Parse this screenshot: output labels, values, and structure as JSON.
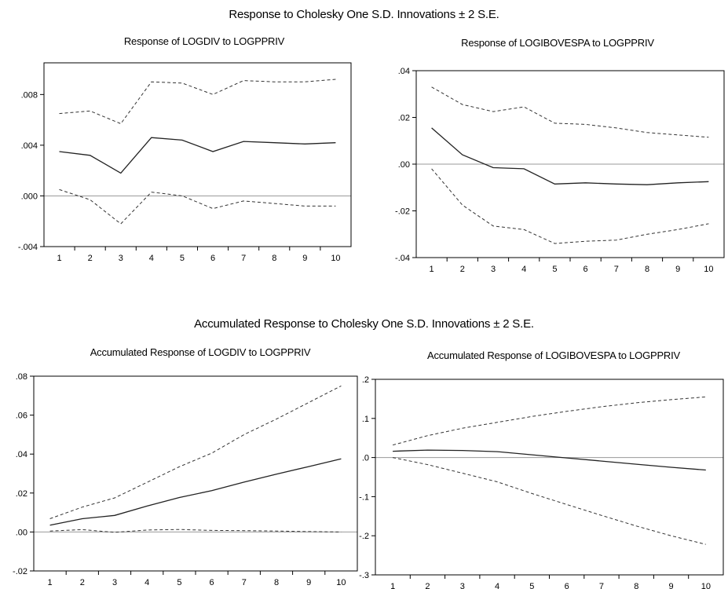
{
  "figure": {
    "suptitle_top": "Response to Cholesky One S.D. Innovations ± 2 S.E.",
    "suptitle_bottom": "Accumulated Response to Cholesky One S.D. Innovations ± 2 S.E."
  },
  "chart_data": [
    {
      "type": "line",
      "title": "Response of LOGDIV to LOGPPRIV",
      "xlabel": "",
      "ylabel": "",
      "x": [
        1,
        2,
        3,
        4,
        5,
        6,
        7,
        8,
        9,
        10
      ],
      "xlim": [
        0.5,
        10.5
      ],
      "ylim": [
        -0.004,
        0.0105
      ],
      "yticks": [
        -0.004,
        0.0,
        0.004,
        0.008
      ],
      "ytick_labels": [
        "-.004",
        ".000",
        ".004",
        ".008"
      ],
      "zero_line": true,
      "grid": false,
      "series": [
        {
          "style": "solid",
          "values": [
            0.0035,
            0.0032,
            0.0018,
            0.0046,
            0.0044,
            0.0035,
            0.0043,
            0.0042,
            0.0041,
            0.0042
          ]
        },
        {
          "style": "dashed",
          "values": [
            0.0065,
            0.0067,
            0.0057,
            0.009,
            0.0089,
            0.008,
            0.0091,
            0.009,
            0.009,
            0.0092
          ]
        },
        {
          "style": "dashed",
          "values": [
            0.0005,
            -0.0003,
            -0.0022,
            0.0003,
            0.0,
            -0.001,
            -0.0004,
            -0.0006,
            -0.0008,
            -0.0008
          ]
        }
      ]
    },
    {
      "type": "line",
      "title": "Response of LOGIBOVESPA to LOGPPRIV",
      "xlabel": "",
      "ylabel": "",
      "x": [
        1,
        2,
        3,
        4,
        5,
        6,
        7,
        8,
        9,
        10
      ],
      "xlim": [
        0.5,
        10.5
      ],
      "ylim": [
        -0.04,
        0.04
      ],
      "yticks": [
        -0.04,
        -0.02,
        0.0,
        0.02,
        0.04
      ],
      "ytick_labels": [
        "-.04",
        "-.02",
        ".00",
        ".02",
        ".04"
      ],
      "zero_line": true,
      "grid": false,
      "series": [
        {
          "style": "solid",
          "values": [
            0.0155,
            0.004,
            -0.0015,
            -0.002,
            -0.0085,
            -0.008,
            -0.0085,
            -0.0088,
            -0.008,
            -0.0075
          ]
        },
        {
          "style": "dashed",
          "values": [
            0.033,
            0.0255,
            0.0225,
            0.0245,
            0.0175,
            0.017,
            0.0155,
            0.0135,
            0.0125,
            0.0115
          ]
        },
        {
          "style": "dashed",
          "values": [
            -0.002,
            -0.0175,
            -0.0265,
            -0.028,
            -0.034,
            -0.033,
            -0.0325,
            -0.03,
            -0.028,
            -0.0255
          ]
        }
      ]
    },
    {
      "type": "line",
      "title": "Accumulated Response of LOGDIV to LOGPPRIV",
      "xlabel": "",
      "ylabel": "",
      "x": [
        1,
        2,
        3,
        4,
        5,
        6,
        7,
        8,
        9,
        10
      ],
      "xlim": [
        0.5,
        10.5
      ],
      "ylim": [
        -0.02,
        0.08
      ],
      "yticks": [
        -0.02,
        0.0,
        0.02,
        0.04,
        0.06,
        0.08
      ],
      "ytick_labels": [
        "-.02",
        ".00",
        ".02",
        ".04",
        ".06",
        ".08"
      ],
      "zero_line": true,
      "grid": false,
      "series": [
        {
          "style": "solid",
          "values": [
            0.0035,
            0.0068,
            0.0085,
            0.0133,
            0.0177,
            0.0212,
            0.0256,
            0.0297,
            0.0336,
            0.0376
          ]
        },
        {
          "style": "dashed",
          "values": [
            0.0068,
            0.0128,
            0.0175,
            0.0255,
            0.0335,
            0.0405,
            0.05,
            0.058,
            0.0665,
            0.075
          ]
        },
        {
          "style": "dashed",
          "values": [
            0.0005,
            0.0012,
            -0.0002,
            0.001,
            0.0013,
            0.0008,
            0.0007,
            0.0005,
            0.0002,
            0.0
          ]
        }
      ]
    },
    {
      "type": "line",
      "title": "Accumulated Response of LOGIBOVESPA to LOGPPRIV",
      "xlabel": "",
      "ylabel": "",
      "x": [
        1,
        2,
        3,
        4,
        5,
        6,
        7,
        8,
        9,
        10
      ],
      "xlim": [
        0.5,
        10.5
      ],
      "ylim": [
        -0.3,
        0.2
      ],
      "yticks": [
        -0.3,
        -0.2,
        -0.1,
        0.0,
        0.1,
        0.2
      ],
      "ytick_labels": [
        "-.3",
        "-.2",
        "-.1",
        ".0",
        ".1",
        ".2"
      ],
      "zero_line": true,
      "grid": false,
      "series": [
        {
          "style": "solid",
          "values": [
            0.016,
            0.019,
            0.018,
            0.015,
            0.007,
            -0.001,
            -0.009,
            -0.017,
            -0.025,
            -0.032
          ]
        },
        {
          "style": "dashed",
          "values": [
            0.032,
            0.056,
            0.075,
            0.09,
            0.105,
            0.118,
            0.13,
            0.14,
            0.148,
            0.155
          ]
        },
        {
          "style": "dashed",
          "values": [
            0.0,
            -0.018,
            -0.04,
            -0.062,
            -0.092,
            -0.12,
            -0.148,
            -0.175,
            -0.2,
            -0.222
          ]
        }
      ]
    }
  ]
}
